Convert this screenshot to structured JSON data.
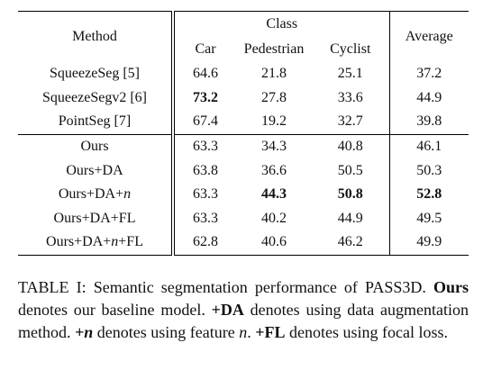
{
  "table": {
    "header": {
      "method": "Method",
      "class": "Class",
      "columns": [
        "Car",
        "Pedestrian",
        "Cyclist"
      ],
      "average": "Average"
    },
    "rows": [
      {
        "method": [
          "SqueezeSeg [5]"
        ],
        "values": [
          64.6,
          21.8,
          25.1,
          37.2
        ]
      },
      {
        "method": [
          "SqueezeSegv2 [6]"
        ],
        "values": [
          73.2,
          27.8,
          33.6,
          44.9
        ]
      },
      {
        "method": [
          "PointSeg [7]"
        ],
        "values": [
          67.4,
          19.2,
          32.7,
          39.8
        ]
      },
      {
        "method": [
          "Ours"
        ],
        "values": [
          63.3,
          34.3,
          40.8,
          46.1
        ]
      },
      {
        "method": [
          "Ours+DA"
        ],
        "values": [
          63.8,
          36.6,
          50.5,
          50.3
        ]
      },
      {
        "method": [
          "Ours+DA+",
          "n"
        ],
        "values": [
          63.3,
          44.3,
          50.8,
          52.8
        ]
      },
      {
        "method": [
          "Ours+DA+FL"
        ],
        "values": [
          63.3,
          40.2,
          44.9,
          49.5
        ]
      },
      {
        "method": [
          "Ours+DA+",
          "n",
          "+FL"
        ],
        "values": [
          62.8,
          40.6,
          46.2,
          49.9
        ]
      }
    ]
  },
  "caption": [
    "TABLE I: Semantic segmentation performance of PASS3D. ",
    "Ours",
    " denotes our baseline model. ",
    "+DA",
    " denotes using data augmentation method. ",
    "+n",
    " denotes using feature ",
    "n",
    ". ",
    "+FL",
    " denotes using focal loss."
  ]
}
